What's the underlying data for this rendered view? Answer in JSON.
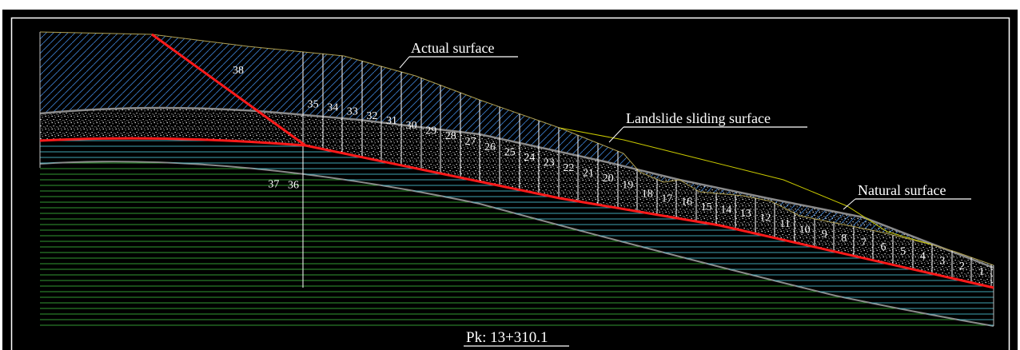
{
  "drawing": {
    "labels": {
      "actual_surface": "Actual surface",
      "sliding_surface": "Landslide sliding surface",
      "natural_surface": "Natural surface",
      "section": "Pk: 13+310.1"
    },
    "slices": [
      "1",
      "2",
      "3",
      "4",
      "5",
      "6",
      "7",
      "8",
      "9",
      "10",
      "11",
      "12",
      "13",
      "14",
      "15",
      "16",
      "17",
      "18",
      "19",
      "20",
      "21",
      "22",
      "23",
      "24",
      "25",
      "26",
      "27",
      "28",
      "29",
      "30",
      "31",
      "32",
      "33",
      "34",
      "35",
      "36",
      "37",
      "38"
    ],
    "colors": {
      "background": "#000000",
      "frame": "#ffffff",
      "slide_mass_hatch": "#3a7bc8",
      "sliding_surface": "#ff1a1a",
      "weathered_layer_lines": "#4fd0e0",
      "bedrock_lines": "#3fbf3f",
      "natural_surface": "#c8c800",
      "text": "#ffffff"
    },
    "icons": []
  }
}
